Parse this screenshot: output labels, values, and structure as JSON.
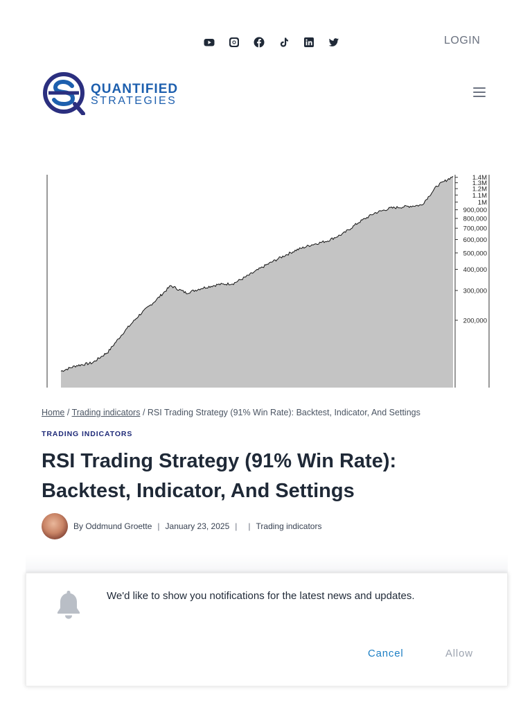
{
  "header": {
    "socials": [
      {
        "name": "youtube-icon"
      },
      {
        "name": "instagram-icon"
      },
      {
        "name": "facebook-icon"
      },
      {
        "name": "tiktok-icon"
      },
      {
        "name": "linkedin-icon"
      },
      {
        "name": "twitter-icon"
      }
    ],
    "login_label": "LOGIN",
    "logo": {
      "line1": "QUANTIFIED",
      "line2": "STRATEGIES"
    },
    "brand_color": "#1d5fae"
  },
  "chart_data": {
    "type": "area",
    "yscale": "log",
    "ylim": [
      80000,
      1450000
    ],
    "y_tick_labels": [
      "1.4M",
      "1.3M",
      "1.2M",
      "1.1M",
      "1M",
      "900,000",
      "800,000",
      "700,000",
      "600,000",
      "500,000",
      "400,000",
      "300,000",
      "200,000"
    ],
    "y_tick_values": [
      1400000,
      1300000,
      1200000,
      1100000,
      1000000,
      900000,
      800000,
      700000,
      600000,
      500000,
      400000,
      300000,
      200000
    ],
    "x_index": [
      0,
      4,
      8,
      12,
      16,
      20,
      24,
      28,
      32,
      36,
      40,
      44,
      48,
      52,
      56,
      60,
      64,
      68,
      72,
      76,
      80,
      84,
      88,
      92,
      96,
      100
    ],
    "values": [
      100000,
      108000,
      112000,
      130000,
      170000,
      215000,
      260000,
      320000,
      290000,
      310000,
      325000,
      330000,
      370000,
      420000,
      470000,
      520000,
      560000,
      590000,
      650000,
      760000,
      860000,
      920000,
      940000,
      960000,
      1250000,
      1420000
    ],
    "fill_color": "#c4c4c4",
    "line_color": "#111111"
  },
  "breadcrumb": {
    "home": "Home",
    "sep1": "/",
    "trading": "Trading indicators",
    "sep2": "/",
    "current": "RSI Trading Strategy (91% Win Rate): Backtest, Indicator, And Settings"
  },
  "article": {
    "category": "TRADING INDICATORS",
    "title": "RSI Trading Strategy (91% Win Rate): Backtest, Indicator, And Settings",
    "author": "By Oddmund Groette",
    "date": "January 23, 2025",
    "sep": "|",
    "meta_category": "Trading indicators"
  },
  "notification": {
    "message": "We'd like to show you notifications for the latest news and updates.",
    "cancel_label": "Cancel",
    "allow_label": "Allow",
    "cancel_color": "#1d7fc4"
  }
}
